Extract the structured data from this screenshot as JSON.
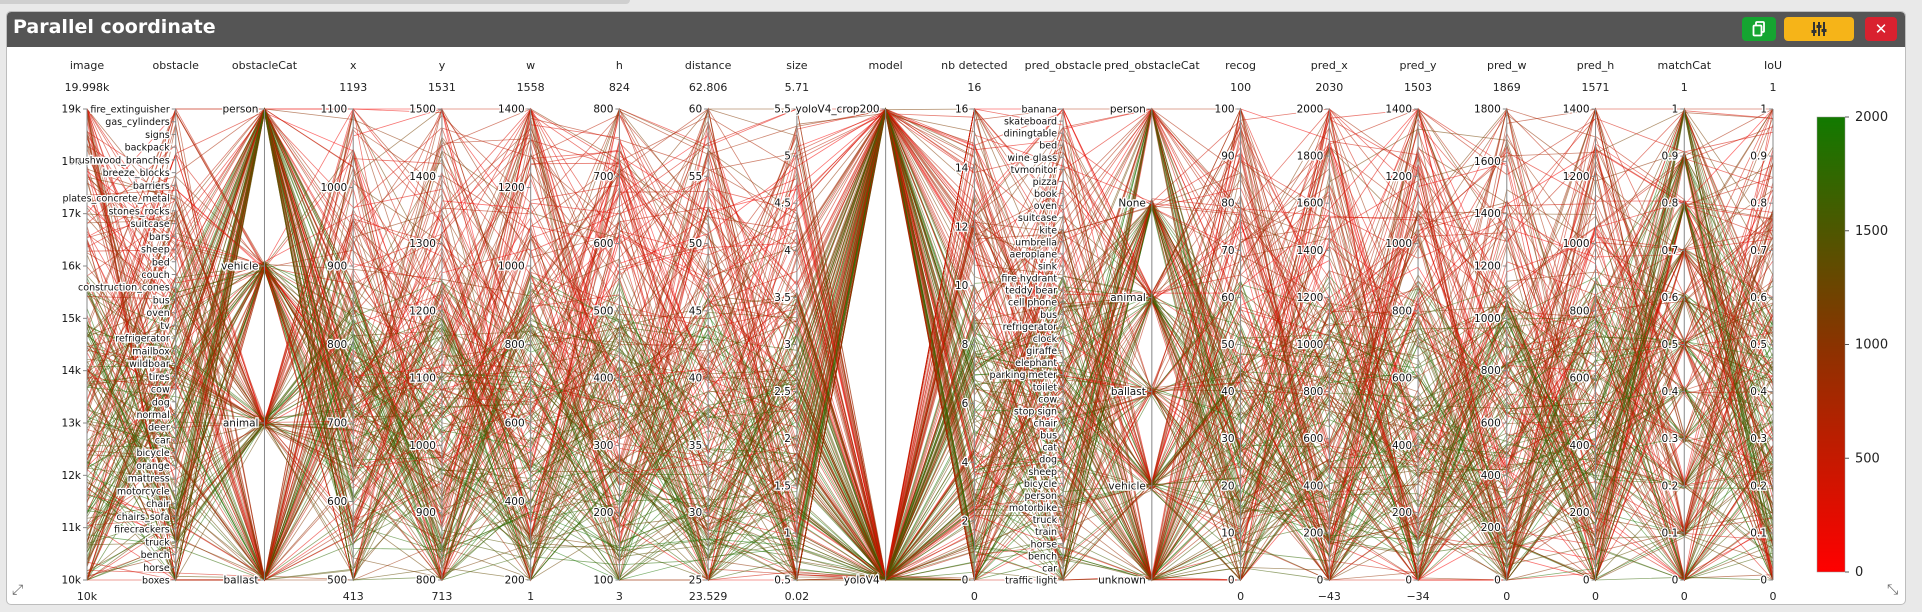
{
  "window": {
    "title": "Parallel coordinate"
  },
  "toolbar": {
    "copy_icon": "copy-icon",
    "settings_icon": "sliders-icon",
    "close_icon": "close-icon",
    "close_glyph": "✕"
  },
  "colors": {
    "high": "#127a00",
    "mid": "#8a3300",
    "low": "#ff0000"
  },
  "chart_data": {
    "type": "parallel_coordinates",
    "title": "",
    "axes": [
      {
        "name": "image",
        "top": "19.998k",
        "bottom": "10k",
        "ticks": [
          "19k",
          "18k",
          "17k",
          "16k",
          "15k",
          "14k",
          "13k",
          "12k",
          "11k",
          "10k"
        ]
      },
      {
        "name": "obstacle",
        "top": "",
        "bottom": "",
        "ticks": [
          "fire_extinguisher",
          "gas_cylinders",
          "signs",
          "backpack",
          "brushwood_branches",
          "breeze_blocks",
          "barriers",
          "plates_concrete_metal",
          "stones_rocks",
          "suitcase",
          "bars",
          "sheep",
          "bed",
          "couch",
          "construction_cones",
          "bus",
          "oven",
          "tv",
          "refrigerator",
          "mailbox",
          "wildboar",
          "tires",
          "cow",
          "dog",
          "normal",
          "deer",
          "car",
          "bicycle",
          "orange",
          "mattress",
          "motorcycle",
          "chair",
          "chairs_sofa",
          "firecrackers",
          "truck",
          "bench",
          "horse",
          "boxes"
        ]
      },
      {
        "name": "obstacleCat",
        "top": "",
        "bottom": "",
        "ticks": [
          "person",
          "vehicle",
          "animal",
          "ballast"
        ]
      },
      {
        "name": "x",
        "top": "1193",
        "bottom": "413",
        "ticks": [
          "1100",
          "1000",
          "900",
          "800",
          "700",
          "600",
          "500"
        ]
      },
      {
        "name": "y",
        "top": "1531",
        "bottom": "713",
        "ticks": [
          "1500",
          "1400",
          "1300",
          "1200",
          "1100",
          "1000",
          "900",
          "800"
        ]
      },
      {
        "name": "w",
        "top": "1558",
        "bottom": "1",
        "ticks": [
          "1400",
          "1200",
          "1000",
          "800",
          "600",
          "400",
          "200"
        ]
      },
      {
        "name": "h",
        "top": "824",
        "bottom": "3",
        "ticks": [
          "800",
          "700",
          "600",
          "500",
          "400",
          "300",
          "200",
          "100"
        ]
      },
      {
        "name": "distance",
        "top": "62.806",
        "bottom": "23.529",
        "ticks": [
          "60",
          "55",
          "50",
          "45",
          "40",
          "35",
          "30",
          "25"
        ]
      },
      {
        "name": "size",
        "top": "5.71",
        "bottom": "0.02",
        "ticks": [
          "5.5",
          "5",
          "4.5",
          "4",
          "3.5",
          "3",
          "2.5",
          "2",
          "1.5",
          "1",
          "0.5"
        ]
      },
      {
        "name": "model",
        "top": "",
        "bottom": "",
        "ticks": [
          "yoloV4_crop200",
          "yoloV4"
        ]
      },
      {
        "name": "nb detected",
        "top": "16",
        "bottom": "0",
        "ticks": [
          "16",
          "14",
          "12",
          "10",
          "8",
          "6",
          "4",
          "2",
          "0"
        ]
      },
      {
        "name": "pred_obstacle",
        "top": "",
        "bottom": "",
        "ticks": [
          "banana",
          "skateboard",
          "diningtable",
          "bed",
          "wine glass",
          "tvmonitor",
          "pizza",
          "book",
          "oven",
          "suitcase",
          "kite",
          "umbrella",
          "aeroplane",
          "sink",
          "fire hydrant",
          "teddy bear",
          "cell phone",
          "bus",
          "refrigerator",
          "clock",
          "giraffe",
          "elephant",
          "parking meter",
          "toilet",
          "cow",
          "stop sign",
          "chair",
          "bus",
          "cat",
          "dog",
          "sheep",
          "bicycle",
          "person",
          "motorbike",
          "truck",
          "train",
          "horse",
          "bench",
          "car",
          "traffic light"
        ]
      },
      {
        "name": "pred_obstacleCat",
        "top": "",
        "bottom": "",
        "ticks": [
          "person",
          "None",
          "animal",
          "ballast",
          "vehicle",
          "unknown"
        ]
      },
      {
        "name": "recog",
        "top": "100",
        "bottom": "0",
        "ticks": [
          "100",
          "90",
          "80",
          "70",
          "60",
          "50",
          "40",
          "30",
          "20",
          "10",
          "0"
        ]
      },
      {
        "name": "pred_x",
        "top": "2030",
        "bottom": "−43",
        "ticks": [
          "2000",
          "1800",
          "1600",
          "1400",
          "1200",
          "1000",
          "800",
          "600",
          "400",
          "200",
          "0"
        ]
      },
      {
        "name": "pred_y",
        "top": "1503",
        "bottom": "−34",
        "ticks": [
          "1400",
          "1200",
          "1000",
          "800",
          "600",
          "400",
          "200",
          "0"
        ]
      },
      {
        "name": "pred_w",
        "top": "1869",
        "bottom": "0",
        "ticks": [
          "1800",
          "1600",
          "1400",
          "1200",
          "1000",
          "800",
          "600",
          "400",
          "200",
          "0"
        ]
      },
      {
        "name": "pred_h",
        "top": "1571",
        "bottom": "0",
        "ticks": [
          "1400",
          "1200",
          "1000",
          "800",
          "600",
          "400",
          "200",
          "0"
        ]
      },
      {
        "name": "matchCat",
        "top": "1",
        "bottom": "0",
        "ticks": [
          "1",
          "0.9",
          "0.8",
          "0.7",
          "0.6",
          "0.5",
          "0.4",
          "0.3",
          "0.2",
          "0.1",
          "0"
        ]
      },
      {
        "name": "IoU",
        "top": "1",
        "bottom": "0",
        "ticks": [
          "1",
          "0.9",
          "0.8",
          "0.7",
          "0.6",
          "0.5",
          "0.4",
          "0.3",
          "0.2",
          "0.1",
          "0"
        ]
      }
    ],
    "colorbar": {
      "min": 0,
      "max": 2000,
      "ticks": [
        "2000",
        "1500",
        "1000",
        "500",
        "0"
      ],
      "colors": [
        "#127a00",
        "#8a3300",
        "#ff0000"
      ]
    }
  }
}
